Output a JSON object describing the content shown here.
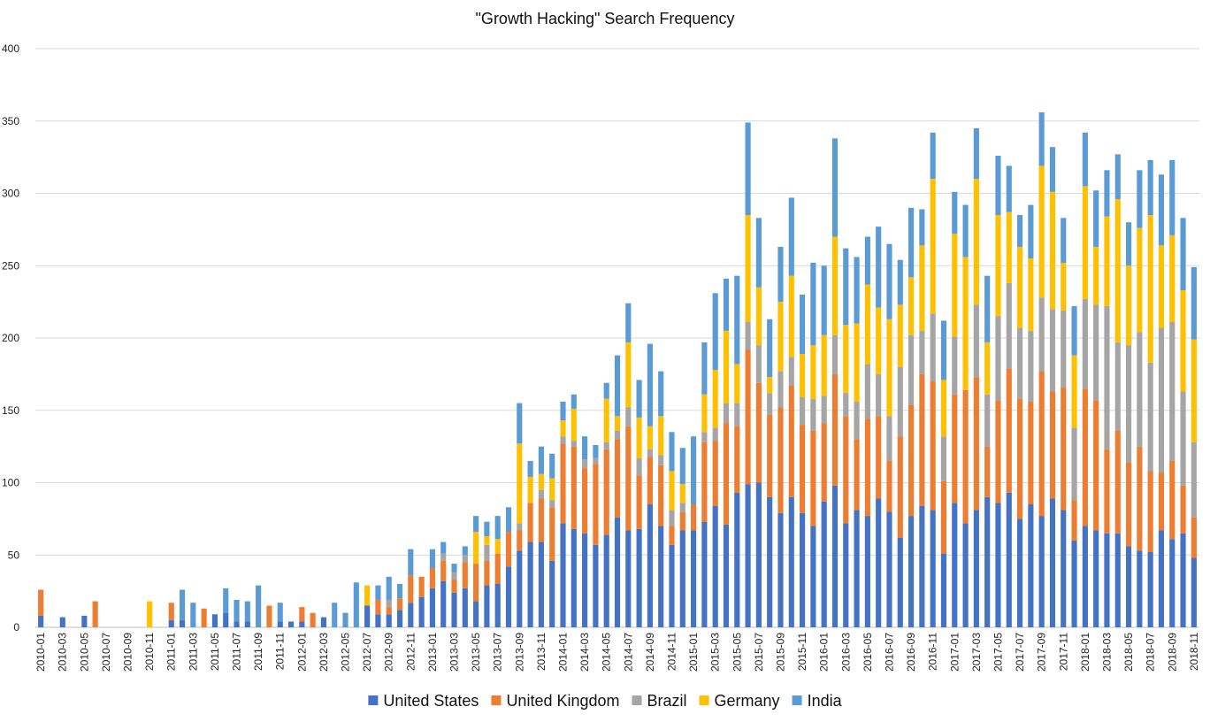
{
  "chart_data": {
    "type": "bar",
    "stacked": true,
    "title": "\"Growth Hacking\" Search Frequency",
    "xlabel": "",
    "ylabel": "",
    "ylim": [
      0,
      400
    ],
    "yticks": [
      0,
      50,
      100,
      150,
      200,
      250,
      300,
      350,
      400
    ],
    "grid": true,
    "legend_position": "bottom",
    "colors": {
      "United States": "#4472C4",
      "United Kingdom": "#ED7D31",
      "Brazil": "#A5A5A5",
      "Germany": "#FFC000",
      "India": "#5B9BD5"
    },
    "categories": [
      "2010-01",
      "2010-02",
      "2010-03",
      "2010-04",
      "2010-05",
      "2010-06",
      "2010-07",
      "2010-08",
      "2010-09",
      "2010-10",
      "2010-11",
      "2010-12",
      "2011-01",
      "2011-02",
      "2011-03",
      "2011-04",
      "2011-05",
      "2011-06",
      "2011-07",
      "2011-08",
      "2011-09",
      "2011-10",
      "2011-11",
      "2011-12",
      "2012-01",
      "2012-02",
      "2012-03",
      "2012-04",
      "2012-05",
      "2012-06",
      "2012-07",
      "2012-08",
      "2012-09",
      "2012-10",
      "2012-11",
      "2012-12",
      "2013-01",
      "2013-02",
      "2013-03",
      "2013-04",
      "2013-05",
      "2013-06",
      "2013-07",
      "2013-08",
      "2013-09",
      "2013-10",
      "2013-11",
      "2013-12",
      "2014-01",
      "2014-02",
      "2014-03",
      "2014-04",
      "2014-05",
      "2014-06",
      "2014-07",
      "2014-08",
      "2014-09",
      "2014-10",
      "2014-11",
      "2014-12",
      "2015-01",
      "2015-02",
      "2015-03",
      "2015-04",
      "2015-05",
      "2015-06",
      "2015-07",
      "2015-08",
      "2015-09",
      "2015-10",
      "2015-11",
      "2015-12",
      "2016-01",
      "2016-02",
      "2016-03",
      "2016-04",
      "2016-05",
      "2016-06",
      "2016-07",
      "2016-08",
      "2016-09",
      "2016-10",
      "2016-11",
      "2016-12",
      "2017-01",
      "2017-02",
      "2017-03",
      "2017-04",
      "2017-05",
      "2017-06",
      "2017-07",
      "2017-08",
      "2017-09",
      "2017-10",
      "2017-11",
      "2017-12",
      "2018-01",
      "2018-02",
      "2018-03",
      "2018-04",
      "2018-05",
      "2018-06",
      "2018-07",
      "2018-08",
      "2018-09",
      "2018-10",
      "2018-11"
    ],
    "tick_labels": [
      "2010-01",
      "2010-03",
      "2010-05",
      "2010-07",
      "2010-09",
      "2010-11",
      "2011-01",
      "2011-03",
      "2011-05",
      "2011-07",
      "2011-09",
      "2011-11",
      "2012-01",
      "2012-03",
      "2012-05",
      "2012-07",
      "2012-09",
      "2012-11",
      "2013-01",
      "2013-03",
      "2013-05",
      "2013-07",
      "2013-09",
      "2013-11",
      "2014-01",
      "2014-03",
      "2014-05",
      "2014-07",
      "2014-09",
      "2014-11",
      "2015-01",
      "2015-03",
      "2015-05",
      "2015-07",
      "2015-09",
      "2015-11",
      "2016-01",
      "2016-03",
      "2016-05",
      "2016-07",
      "2016-09",
      "2016-11",
      "2017-01",
      "2017-03",
      "2017-05",
      "2017-07",
      "2017-09",
      "2017-11",
      "2018-01",
      "2018-03",
      "2018-05",
      "2018-07",
      "2018-09",
      "2018-11"
    ],
    "series": [
      {
        "name": "United States",
        "values": [
          8,
          0,
          7,
          0,
          8,
          0,
          0,
          0,
          0,
          0,
          0,
          0,
          5,
          5,
          0,
          0,
          9,
          10,
          4,
          4,
          0,
          0,
          4,
          4,
          4,
          0,
          7,
          0,
          0,
          0,
          15,
          9,
          9,
          12,
          17,
          21,
          27,
          32,
          24,
          27,
          18,
          29,
          30,
          42,
          53,
          59,
          59,
          46,
          72,
          68,
          65,
          57,
          64,
          76,
          67,
          68,
          85,
          70,
          57,
          67,
          67,
          73,
          84,
          71,
          93,
          99,
          100,
          90,
          79,
          90,
          79,
          70,
          87,
          98,
          72,
          81,
          77,
          89,
          80,
          62,
          77,
          84,
          81,
          51,
          86,
          72,
          81,
          90,
          86,
          93,
          75,
          85,
          77,
          89,
          81,
          60,
          70,
          67,
          65,
          65,
          56,
          53,
          52,
          67,
          61,
          65,
          48
        ]
      },
      {
        "name": "United Kingdom",
        "values": [
          18,
          0,
          0,
          0,
          0,
          18,
          0,
          0,
          0,
          0,
          0,
          0,
          12,
          0,
          0,
          13,
          0,
          0,
          0,
          0,
          0,
          15,
          0,
          0,
          10,
          10,
          0,
          0,
          0,
          0,
          0,
          10,
          5,
          8,
          19,
          14,
          14,
          14,
          9,
          18,
          26,
          17,
          21,
          24,
          14,
          27,
          30,
          37,
          55,
          57,
          45,
          56,
          59,
          54,
          72,
          37,
          33,
          42,
          13,
          13,
          18,
          55,
          45,
          70,
          46,
          93,
          69,
          57,
          73,
          77,
          61,
          66,
          54,
          77,
          74,
          49,
          67,
          57,
          35,
          70,
          77,
          91,
          89,
          50,
          75,
          92,
          92,
          35,
          71,
          86,
          83,
          71,
          100,
          74,
          85,
          28,
          95,
          90,
          58,
          71,
          58,
          72,
          56,
          40,
          54,
          33,
          28
        ]
      },
      {
        "name": "Brazil",
        "values": [
          0,
          0,
          0,
          0,
          0,
          0,
          0,
          0,
          0,
          0,
          0,
          0,
          0,
          0,
          0,
          0,
          0,
          0,
          0,
          0,
          0,
          0,
          0,
          0,
          0,
          0,
          0,
          0,
          0,
          0,
          0,
          0,
          5,
          0,
          0,
          0,
          0,
          5,
          5,
          5,
          0,
          11,
          0,
          0,
          5,
          0,
          6,
          5,
          5,
          4,
          6,
          4,
          5,
          6,
          13,
          12,
          5,
          7,
          11,
          6,
          0,
          7,
          9,
          14,
          16,
          19,
          26,
          15,
          25,
          20,
          19,
          22,
          19,
          27,
          16,
          26,
          38,
          29,
          31,
          48,
          48,
          30,
          47,
          31,
          40,
          0,
          50,
          36,
          58,
          59,
          49,
          49,
          51,
          57,
          53,
          50,
          62,
          66,
          99,
          61,
          81,
          79,
          75,
          100,
          96,
          65,
          52
        ]
      },
      {
        "name": "Germany",
        "values": [
          0,
          0,
          0,
          0,
          0,
          0,
          0,
          0,
          0,
          0,
          18,
          0,
          0,
          0,
          0,
          0,
          0,
          0,
          0,
          0,
          0,
          0,
          0,
          0,
          0,
          0,
          0,
          0,
          0,
          0,
          14,
          0,
          0,
          0,
          0,
          0,
          0,
          0,
          0,
          0,
          22,
          6,
          10,
          0,
          55,
          18,
          11,
          15,
          11,
          22,
          0,
          0,
          30,
          10,
          45,
          28,
          16,
          27,
          27,
          13,
          0,
          26,
          40,
          50,
          27,
          74,
          40,
          11,
          48,
          56,
          30,
          37,
          42,
          68,
          47,
          54,
          55,
          46,
          67,
          43,
          40,
          59,
          93,
          39,
          71,
          92,
          87,
          36,
          70,
          49,
          56,
          50,
          91,
          81,
          33,
          50,
          78,
          40,
          62,
          99,
          55,
          72,
          102,
          57,
          60,
          70,
          71
        ]
      },
      {
        "name": "India",
        "values": [
          0,
          0,
          0,
          0,
          0,
          0,
          0,
          0,
          0,
          0,
          0,
          0,
          0,
          21,
          17,
          0,
          0,
          17,
          15,
          14,
          29,
          0,
          13,
          0,
          0,
          0,
          0,
          17,
          10,
          31,
          0,
          10,
          16,
          10,
          18,
          0,
          13,
          8,
          6,
          6,
          11,
          10,
          16,
          17,
          28,
          11,
          19,
          17,
          13,
          10,
          16,
          9,
          11,
          42,
          27,
          26,
          57,
          31,
          27,
          25,
          47,
          36,
          53,
          36,
          61,
          64,
          48,
          40,
          38,
          54,
          41,
          57,
          48,
          68,
          53,
          46,
          33,
          56,
          52,
          31,
          48,
          25,
          32,
          41,
          29,
          36,
          35,
          46,
          41,
          32,
          22,
          37,
          37,
          31,
          31,
          34,
          37,
          39,
          32,
          31,
          30,
          40,
          38,
          49,
          52,
          50,
          50
        ]
      }
    ]
  }
}
